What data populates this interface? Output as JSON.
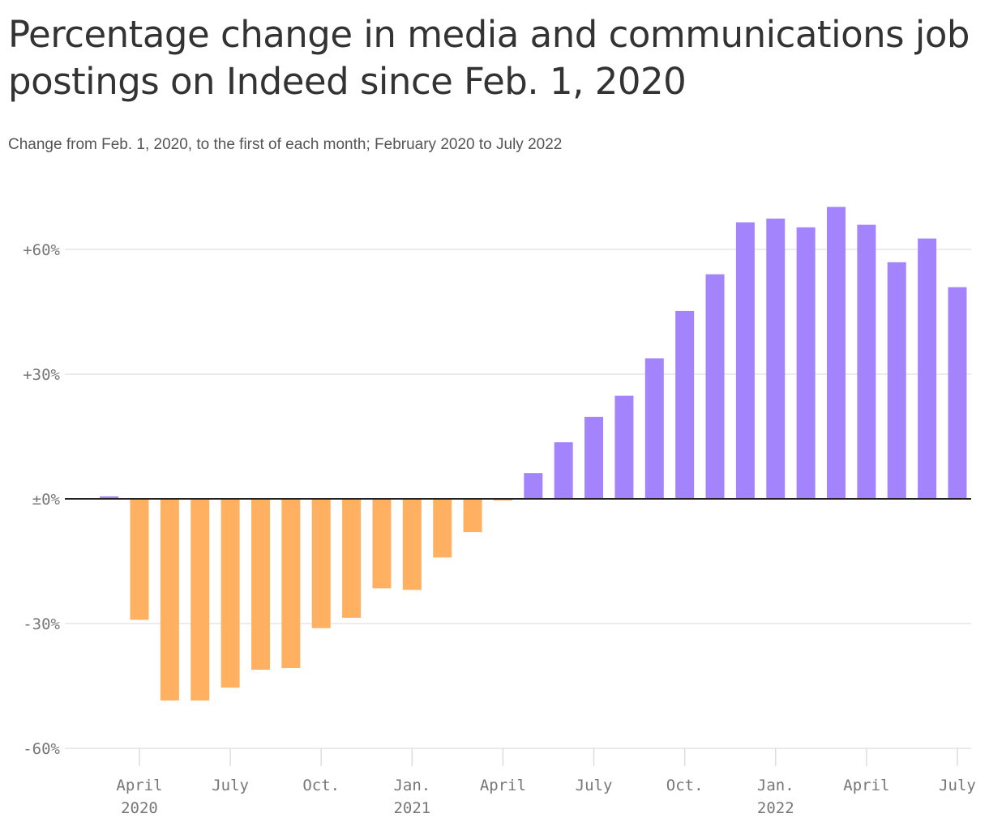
{
  "title": "Percentage change in media and communications job postings on Indeed since Feb. 1, 2020",
  "subtitle": "Change from Feb. 1, 2020, to the first of each month; February 2020 to July 2022",
  "chart_data": {
    "type": "bar",
    "title": "Percentage change in media and communications job postings on Indeed since Feb. 1, 2020",
    "subtitle": "Change from Feb. 1, 2020, to the first of each month; February 2020 to July 2022",
    "xlabel": "",
    "ylabel": "",
    "ylim": [
      -60,
      70
    ],
    "grid": true,
    "colors": {
      "positive": "#A384FD",
      "negative": "#FFB060",
      "zero_line": "#222222",
      "grid": "#E5E5E5"
    },
    "y_ticks": [
      {
        "value": 60,
        "label": "+60%"
      },
      {
        "value": 30,
        "label": "+30%"
      },
      {
        "value": 0,
        "label": "±0%"
      },
      {
        "value": -30,
        "label": "-30%"
      },
      {
        "value": -60,
        "label": "-60%"
      }
    ],
    "x_ticks": [
      {
        "month": "2020-04",
        "label": "April",
        "year": "2020"
      },
      {
        "month": "2020-07",
        "label": "July",
        "year": ""
      },
      {
        "month": "2020-10",
        "label": "Oct.",
        "year": ""
      },
      {
        "month": "2021-01",
        "label": "Jan.",
        "year": "2021"
      },
      {
        "month": "2021-04",
        "label": "April",
        "year": ""
      },
      {
        "month": "2021-07",
        "label": "July",
        "year": ""
      },
      {
        "month": "2021-10",
        "label": "Oct.",
        "year": ""
      },
      {
        "month": "2022-01",
        "label": "Jan.",
        "year": "2022"
      },
      {
        "month": "2022-04",
        "label": "April",
        "year": ""
      },
      {
        "month": "2022-07",
        "label": "July",
        "year": ""
      }
    ],
    "categories": [
      "2020-03",
      "2020-04",
      "2020-05",
      "2020-06",
      "2020-07",
      "2020-08",
      "2020-09",
      "2020-10",
      "2020-11",
      "2020-12",
      "2021-01",
      "2021-02",
      "2021-03",
      "2021-04",
      "2021-05",
      "2021-06",
      "2021-07",
      "2021-08",
      "2021-09",
      "2021-10",
      "2021-11",
      "2021-12",
      "2022-01",
      "2022-02",
      "2022-03",
      "2022-04",
      "2022-05",
      "2022-06",
      "2022-07"
    ],
    "values": [
      0.6,
      -29.1,
      -48.5,
      -48.5,
      -45.4,
      -41.1,
      -40.7,
      -31.1,
      -28.6,
      -21.5,
      -21.9,
      -14.1,
      -8.0,
      -0.4,
      6.2,
      13.6,
      19.7,
      24.8,
      33.8,
      45.2,
      54.0,
      66.5,
      67.4,
      65.3,
      70.2,
      65.9,
      56.9,
      62.6,
      50.9
    ]
  }
}
